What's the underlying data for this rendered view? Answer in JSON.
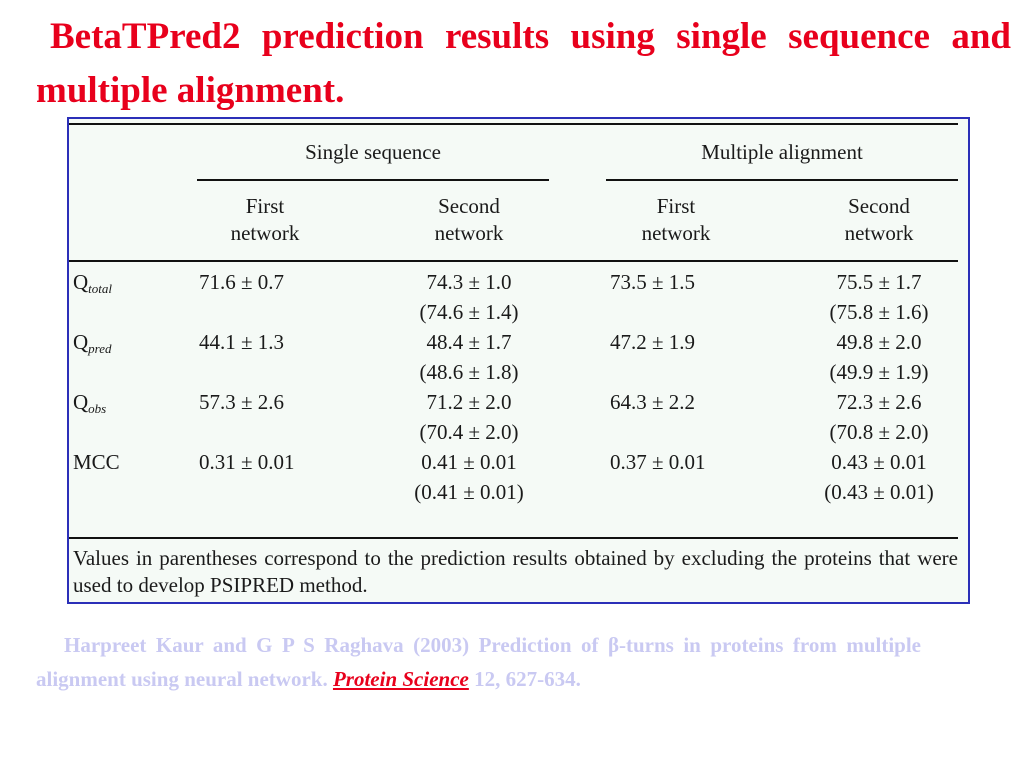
{
  "title": "BetaTPred2 prediction results using single sequence and multiple alignment.",
  "table": {
    "group_headers": [
      "Single sequence",
      "Multiple alignment"
    ],
    "column_headers": [
      [
        "First",
        "network"
      ],
      [
        "Second",
        "network"
      ],
      [
        "First",
        "network"
      ],
      [
        "Second",
        "network"
      ]
    ],
    "rows": [
      {
        "label_main": "Q",
        "label_sub": "total",
        "values": [
          "71.6 ± 0.7",
          "74.3 ± 1.0",
          "73.5 ± 1.5",
          "75.5 ± 1.7"
        ],
        "paren": [
          "(74.6 ± 1.4)",
          "(75.8 ± 1.6)"
        ]
      },
      {
        "label_main": "Q",
        "label_sub": "pred",
        "values": [
          "44.1 ± 1.3",
          "48.4 ± 1.7",
          "47.2 ± 1.9",
          "49.8 ± 2.0"
        ],
        "paren": [
          "(48.6 ± 1.8)",
          "(49.9 ± 1.9)"
        ]
      },
      {
        "label_main": "Q",
        "label_sub": "obs",
        "values": [
          "57.3 ± 2.6",
          "71.2 ± 2.0",
          "64.3 ± 2.2",
          "72.3 ± 2.6"
        ],
        "paren": [
          "(70.4 ± 2.0)",
          "(70.8 ± 2.0)"
        ]
      },
      {
        "label_main": "MCC",
        "label_sub": "",
        "values": [
          "0.31 ± 0.01",
          "0.41 ± 0.01",
          "0.37 ± 0.01",
          "0.43 ± 0.01"
        ],
        "paren": [
          "(0.41 ± 0.01)",
          "(0.43 ± 0.01)"
        ]
      }
    ],
    "footnote": "Values in parentheses correspond to the prediction results obtained by excluding the proteins that were used to develop PSIPRED method."
  },
  "citation": {
    "text": "Harpreet Kaur and G P S Raghava (2003) Prediction of β-turns in proteins from multiple alignment using neural network.",
    "journal": "Protein Science",
    "volume_pages": "12, 627-634."
  },
  "colors": {
    "title": "#e8001c",
    "frame_border": "#2b2fb8",
    "table_bg": "#f5faf6",
    "citation_text": "#c9c9f2",
    "journal_link": "#e8001c"
  }
}
